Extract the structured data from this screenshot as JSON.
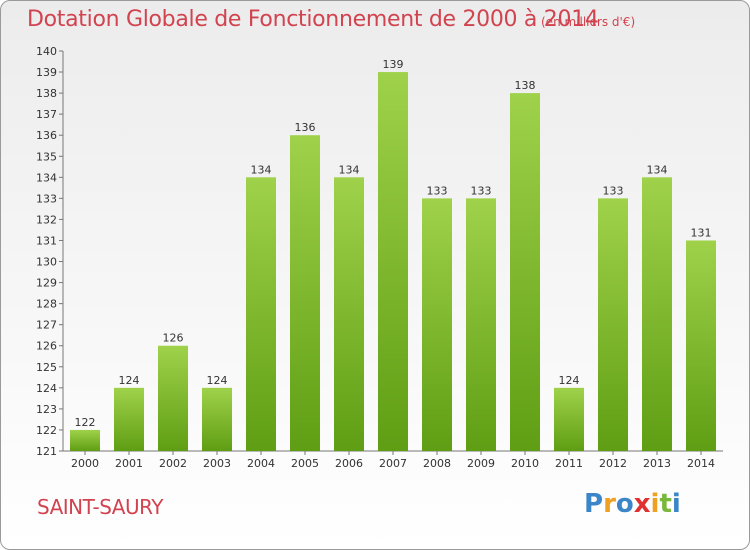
{
  "title": "Dotation Globale de Fonctionnement de 2000 à 2014",
  "unit": "(en milliers d'€)",
  "place": "SAINT-SAURY",
  "logo": {
    "letters": [
      "P",
      "r",
      "o",
      "x",
      "i",
      "t",
      "i"
    ]
  },
  "colors": {
    "bar_top": "#9fd24a",
    "bar_bottom": "#5f9e14",
    "title": "#d1434f"
  },
  "chart_data": {
    "type": "bar",
    "title": "Dotation Globale de Fonctionnement de 2000 à 2014",
    "xlabel": "",
    "ylabel": "",
    "categories": [
      "2000",
      "2001",
      "2002",
      "2003",
      "2004",
      "2005",
      "2006",
      "2007",
      "2008",
      "2009",
      "2010",
      "2011",
      "2012",
      "2013",
      "2014"
    ],
    "values": [
      122,
      124,
      126,
      124,
      134,
      136,
      134,
      139,
      133,
      133,
      138,
      124,
      133,
      134,
      131
    ],
    "ylim": [
      121,
      140
    ],
    "yticks": [
      121,
      122,
      123,
      124,
      125,
      126,
      127,
      128,
      129,
      130,
      131,
      132,
      133,
      134,
      135,
      136,
      137,
      138,
      139,
      140
    ],
    "grid": false,
    "data_labels": true
  }
}
